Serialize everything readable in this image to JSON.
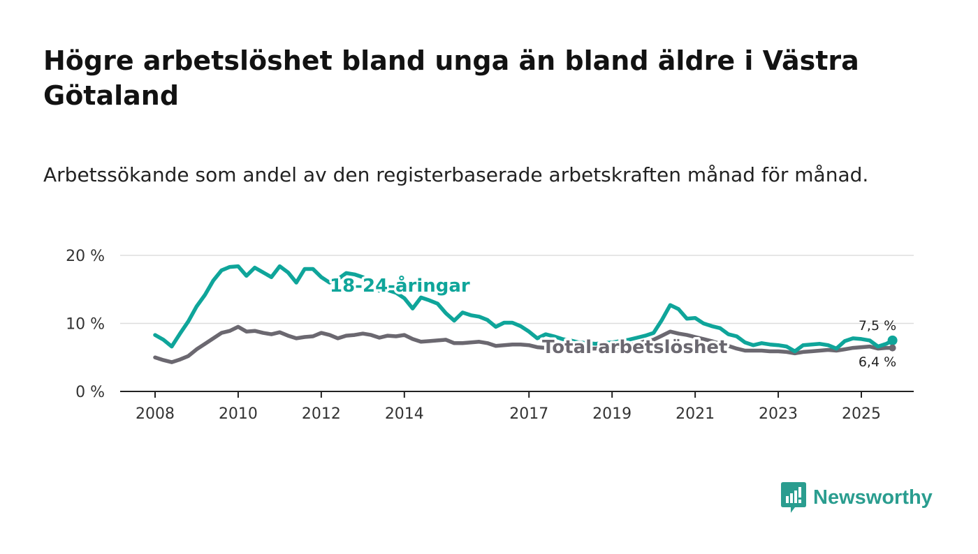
{
  "title": "Högre arbetslöshet bland unga än bland äldre i Västra Götaland",
  "subtitle": "Arbetssökande som andel av den registerbaserade arbetskraften månad för månad.",
  "brand": "Newsworthy",
  "colors": {
    "youth": "#0fa59a",
    "total": "#6b6870",
    "axis": "#222222",
    "grid": "#dddddd",
    "brand": "#2a9d8f"
  },
  "chart_data": {
    "type": "line",
    "title": "Högre arbetslöshet bland unga än bland äldre i Västra Götaland",
    "ylabel": "",
    "xlabel": "",
    "ylim": [
      0,
      20
    ],
    "xlim": [
      2008,
      2026
    ],
    "y_ticks": [
      0,
      10,
      20
    ],
    "y_tick_labels": [
      "0 %",
      "10 %",
      "20 %"
    ],
    "x_ticks": [
      2008,
      2010,
      2012,
      2014,
      2017,
      2019,
      2021,
      2023,
      2025
    ],
    "x_tick_labels": [
      "2008",
      "2010",
      "2012",
      "2014",
      "2017",
      "2019",
      "2021",
      "2023",
      "2025"
    ],
    "grid": "horizontal",
    "series": [
      {
        "name": "18-24-åringar",
        "label": "18-24-åringar",
        "color": "#0fa59a",
        "end_label": "7,5 %",
        "x": [
          2008.0,
          2008.2,
          2008.4,
          2008.6,
          2008.8,
          2009.0,
          2009.2,
          2009.4,
          2009.6,
          2009.8,
          2010.0,
          2010.2,
          2010.4,
          2010.6,
          2010.8,
          2011.0,
          2011.2,
          2011.4,
          2011.6,
          2011.8,
          2012.0,
          2012.2,
          2012.4,
          2012.6,
          2012.8,
          2013.0,
          2013.2,
          2013.4,
          2013.6,
          2013.8,
          2014.0,
          2014.2,
          2014.4,
          2014.6,
          2014.8,
          2015.0,
          2015.2,
          2015.4,
          2015.6,
          2015.8,
          2016.0,
          2016.2,
          2016.4,
          2016.6,
          2016.8,
          2017.0,
          2017.2,
          2017.4,
          2017.6,
          2017.8,
          2018.0,
          2018.2,
          2018.4,
          2018.6,
          2018.8,
          2019.0,
          2019.2,
          2019.4,
          2019.6,
          2019.8,
          2020.0,
          2020.2,
          2020.4,
          2020.6,
          2020.8,
          2021.0,
          2021.2,
          2021.4,
          2021.6,
          2021.8,
          2022.0,
          2022.2,
          2022.4,
          2022.6,
          2022.8,
          2023.0,
          2023.2,
          2023.4,
          2023.6,
          2023.8,
          2024.0,
          2024.2,
          2024.4,
          2024.6,
          2024.8,
          2025.0,
          2025.2,
          2025.4,
          2025.6,
          2025.75
        ],
        "y": [
          8.3,
          7.6,
          6.6,
          8.5,
          10.3,
          12.5,
          14.2,
          16.3,
          17.8,
          18.3,
          18.4,
          17.0,
          18.2,
          17.5,
          16.8,
          18.4,
          17.5,
          16.0,
          18.0,
          18.0,
          16.8,
          16.0,
          16.5,
          17.4,
          17.2,
          16.8,
          15.9,
          14.8,
          14.9,
          14.5,
          13.7,
          12.2,
          13.8,
          13.4,
          12.9,
          11.5,
          10.4,
          11.6,
          11.2,
          11.0,
          10.5,
          9.5,
          10.1,
          10.1,
          9.6,
          8.8,
          7.8,
          8.4,
          8.1,
          7.7,
          7.5,
          7.2,
          7.1,
          7.0,
          7.1,
          7.2,
          7.4,
          7.6,
          7.9,
          8.2,
          8.6,
          10.5,
          12.7,
          12.1,
          10.7,
          10.8,
          10.0,
          9.6,
          9.3,
          8.4,
          8.1,
          7.2,
          6.8,
          7.1,
          6.9,
          6.8,
          6.6,
          5.9,
          6.8,
          6.9,
          7.0,
          6.8,
          6.3,
          7.4,
          7.8,
          7.7,
          7.5,
          6.6,
          7.0,
          7.5
        ]
      },
      {
        "name": "Total arbetslöshet",
        "label": "Total arbetslöshet",
        "color": "#6b6870",
        "end_label": "6,4 %",
        "x": [
          2008.0,
          2008.2,
          2008.4,
          2008.6,
          2008.8,
          2009.0,
          2009.2,
          2009.4,
          2009.6,
          2009.8,
          2010.0,
          2010.2,
          2010.4,
          2010.6,
          2010.8,
          2011.0,
          2011.2,
          2011.4,
          2011.6,
          2011.8,
          2012.0,
          2012.2,
          2012.4,
          2012.6,
          2012.8,
          2013.0,
          2013.2,
          2013.4,
          2013.6,
          2013.8,
          2014.0,
          2014.2,
          2014.4,
          2014.6,
          2014.8,
          2015.0,
          2015.2,
          2015.4,
          2015.6,
          2015.8,
          2016.0,
          2016.2,
          2016.4,
          2016.6,
          2016.8,
          2017.0,
          2017.2,
          2017.4,
          2017.6,
          2017.8,
          2018.0,
          2018.2,
          2018.4,
          2018.6,
          2018.8,
          2019.0,
          2019.2,
          2019.4,
          2019.6,
          2019.8,
          2020.0,
          2020.2,
          2020.4,
          2020.6,
          2020.8,
          2021.0,
          2021.2,
          2021.4,
          2021.6,
          2021.8,
          2022.0,
          2022.2,
          2022.4,
          2022.6,
          2022.8,
          2023.0,
          2023.2,
          2023.4,
          2023.6,
          2023.8,
          2024.0,
          2024.2,
          2024.4,
          2024.6,
          2024.8,
          2025.0,
          2025.2,
          2025.4,
          2025.6,
          2025.75
        ],
        "y": [
          5.0,
          4.6,
          4.3,
          4.7,
          5.2,
          6.2,
          7.0,
          7.8,
          8.6,
          8.9,
          9.5,
          8.8,
          8.9,
          8.6,
          8.4,
          8.7,
          8.2,
          7.8,
          8.0,
          8.1,
          8.6,
          8.3,
          7.8,
          8.2,
          8.3,
          8.5,
          8.3,
          7.9,
          8.2,
          8.1,
          8.3,
          7.7,
          7.3,
          7.4,
          7.5,
          7.6,
          7.1,
          7.1,
          7.2,
          7.3,
          7.1,
          6.7,
          6.8,
          6.9,
          6.9,
          6.8,
          6.5,
          6.4,
          6.4,
          6.4,
          6.4,
          6.4,
          6.3,
          6.3,
          6.4,
          6.5,
          6.6,
          6.8,
          7.0,
          7.4,
          7.6,
          8.2,
          8.8,
          8.5,
          8.3,
          8.0,
          7.7,
          7.4,
          7.0,
          6.7,
          6.3,
          6.0,
          6.0,
          6.0,
          5.9,
          5.9,
          5.8,
          5.6,
          5.8,
          5.9,
          6.0,
          6.1,
          6.0,
          6.2,
          6.4,
          6.5,
          6.6,
          6.3,
          6.4,
          6.4
        ]
      }
    ]
  }
}
